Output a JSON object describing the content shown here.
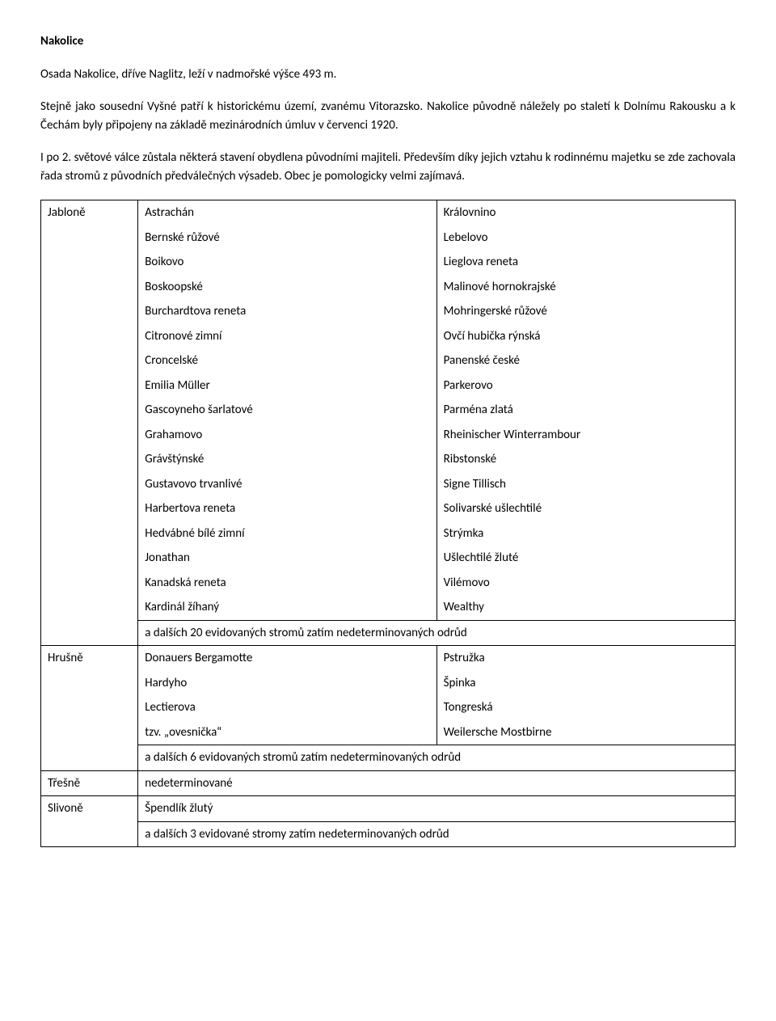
{
  "title": "Nakolice",
  "paragraphs": [
    "Osada Nakolice, dříve Naglitz, leží v nadmořské výšce 493 m.",
    "Stejně jako sousední Vyšné patří k historickému území, zvanému Vitorazsko. Nakolice původně náležely po staletí k Dolnímu Rakousku a k Čechám byly připojeny na základě mezinárodních úmluv v červenci 1920.",
    "I po 2. světové válce zůstala některá stavení obydlena původními majiteli. Především díky jejich vztahu k rodinnému majetku se zde zachovala řada stromů z původních předválečných výsadeb. Obec je pomologicky velmi zajímavá."
  ],
  "table": {
    "jablone_label": "Jabloně",
    "jablone_rows": [
      {
        "a": "Astrachán",
        "b": "Královnino"
      },
      {
        "a": "Bernské růžové",
        "b": "Lebelovo"
      },
      {
        "a": "Boikovo",
        "b": "Lieglova reneta"
      },
      {
        "a": "Boskoopské",
        "b": "Malinové hornokrajské"
      },
      {
        "a": "Burchardtova reneta",
        "b": "Mohringerské růžové"
      },
      {
        "a": "Citronové zimní",
        "b": "Ovčí hubička rýnská"
      },
      {
        "a": "Croncelské",
        "b": "Panenské české"
      },
      {
        "a": "Emilia Müller",
        "b": "Parkerovo"
      },
      {
        "a": "Gascoyneho šarlatové",
        "b": "Parména zlatá"
      },
      {
        "a": "Grahamovo",
        "b": "Rheinischer Winterrambour"
      },
      {
        "a": "Grávštýnské",
        "b": "Ribstonské"
      },
      {
        "a": "Gustavovo trvanlivé",
        "b": "Signe Tillisch"
      },
      {
        "a": "Harbertova reneta",
        "b": "Solivarské ušlechtilé"
      },
      {
        "a": "Hedvábné bílé zimní",
        "b": "Strýmka"
      },
      {
        "a": "Jonathan",
        "b": "Ušlechtilé žluté"
      },
      {
        "a": "Kanadská reneta",
        "b": "Vilémovo"
      },
      {
        "a": "Kardinál žíhaný",
        "b": "Wealthy"
      }
    ],
    "jablone_note": "a dalších 20 evidovaných stromů zatím nedeterminovaných odrůd",
    "hrusne_label": "Hrušně",
    "hrusne_rows": [
      {
        "a": "Donauers Bergamotte",
        "b": "Pstružka"
      },
      {
        "a": "Hardyho",
        "b": "Špinka"
      },
      {
        "a": "Lectierova",
        "b": "Tongreská"
      },
      {
        "a": "tzv. „ovesnička“",
        "b": "Weilersche Mostbirne"
      }
    ],
    "hrusne_note": "a dalších 6 evidovaných stromů zatím nedeterminovaných odrůd",
    "tresne_label": "Třešně",
    "tresne_value": "nedeterminované",
    "slivone_label": "Slivoně",
    "slivone_value": "Špendlík žlutý",
    "slivone_note": "a dalších 3 evidované stromy zatím nedeterminovaných odrůd"
  }
}
